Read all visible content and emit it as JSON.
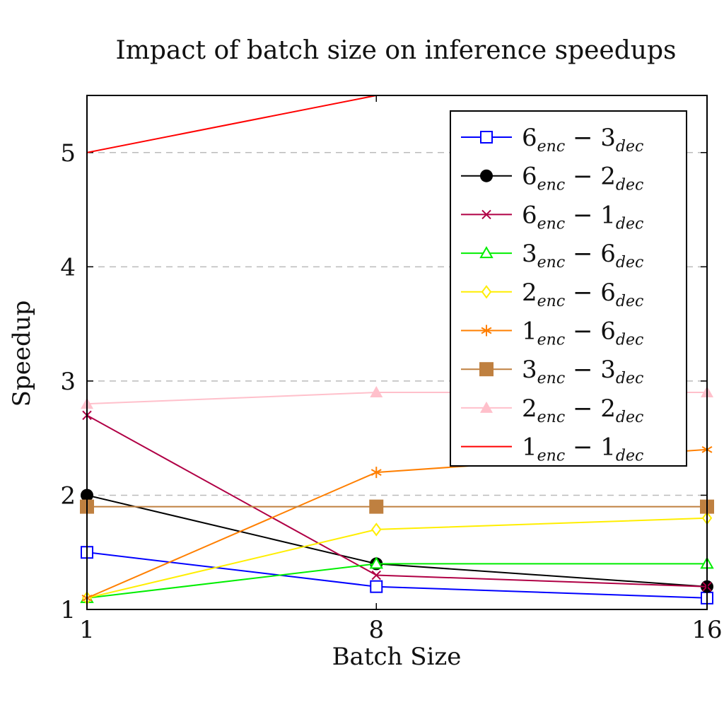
{
  "chart_data": {
    "type": "line",
    "title": "Impact of batch size on inference speedups",
    "xlabel": "Batch Size",
    "ylabel": "Speedup",
    "x": [
      1,
      8,
      16
    ],
    "x_ticks": [
      "1",
      "8",
      "16"
    ],
    "y_ticks": [
      "1",
      "2",
      "3",
      "4",
      "5"
    ],
    "ylim": [
      1,
      5.5
    ],
    "grid": "horizontal-dashed",
    "legend_position": "top-right",
    "series": [
      {
        "name": "6enc − 3dec",
        "label": {
          "a": "6",
          "a_sub": "enc",
          "b": "3",
          "b_sub": "dec"
        },
        "color": "#0000ff",
        "marker": "square-open",
        "values": [
          1.5,
          1.2,
          1.1
        ]
      },
      {
        "name": "6enc − 2dec",
        "label": {
          "a": "6",
          "a_sub": "enc",
          "b": "2",
          "b_sub": "dec"
        },
        "color": "#000000",
        "marker": "circle-filled",
        "values": [
          2.0,
          1.4,
          1.2
        ]
      },
      {
        "name": "6enc − 1dec",
        "label": {
          "a": "6",
          "a_sub": "enc",
          "b": "1",
          "b_sub": "dec"
        },
        "color": "#b00045",
        "marker": "x",
        "values": [
          2.7,
          1.3,
          1.2
        ]
      },
      {
        "name": "3enc − 6dec",
        "label": {
          "a": "3",
          "a_sub": "enc",
          "b": "6",
          "b_sub": "dec"
        },
        "color": "#00ee00",
        "marker": "triangle-open",
        "values": [
          1.1,
          1.4,
          1.4
        ]
      },
      {
        "name": "2enc − 6dec",
        "label": {
          "a": "2",
          "a_sub": "enc",
          "b": "6",
          "b_sub": "dec"
        },
        "color": "#ffee00",
        "marker": "diamond-open",
        "values": [
          1.1,
          1.7,
          1.8
        ]
      },
      {
        "name": "1enc − 6dec",
        "label": {
          "a": "1",
          "a_sub": "enc",
          "b": "6",
          "b_sub": "dec"
        },
        "color": "#ff7f00",
        "marker": "star",
        "values": [
          1.1,
          2.2,
          2.4
        ]
      },
      {
        "name": "3enc − 3dec",
        "label": {
          "a": "3",
          "a_sub": "enc",
          "b": "3",
          "b_sub": "dec"
        },
        "color": "#bf8040",
        "marker": "square-filled",
        "values": [
          1.9,
          1.9,
          1.9
        ]
      },
      {
        "name": "2enc − 2dec",
        "label": {
          "a": "2",
          "a_sub": "enc",
          "b": "2",
          "b_sub": "dec"
        },
        "color": "#ffc0cb",
        "marker": "triangle-filled",
        "values": [
          2.8,
          2.9,
          2.9
        ]
      },
      {
        "name": "1enc − 1dec",
        "label": {
          "a": "1",
          "a_sub": "enc",
          "b": "1",
          "b_sub": "dec"
        },
        "color": "#ff0000",
        "marker": "none",
        "values": [
          5.0,
          5.5,
          5.5
        ]
      }
    ]
  }
}
